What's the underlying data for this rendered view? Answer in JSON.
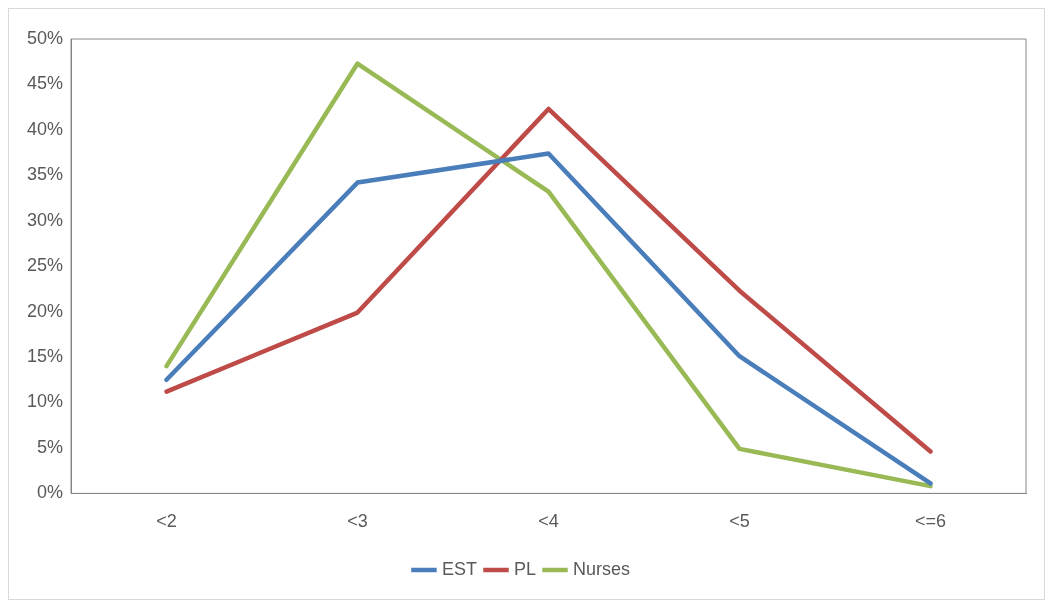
{
  "chart_data": {
    "type": "line",
    "categories": [
      "<2",
      "<3",
      "<4",
      "<5",
      "<=6"
    ],
    "series": [
      {
        "name": "EST",
        "color": "#4a7ebb",
        "values": [
          12.5,
          34.2,
          37.4,
          15.1,
          1.1
        ]
      },
      {
        "name": "PL",
        "color": "#be4b48",
        "values": [
          11.2,
          19.9,
          42.3,
          22.3,
          4.6
        ]
      },
      {
        "name": "Nurses",
        "color": "#98b954",
        "values": [
          14.0,
          47.3,
          33.2,
          4.9,
          0.8
        ]
      }
    ],
    "ylim": [
      0,
      50
    ],
    "yticks": [
      {
        "value": 0,
        "label": "0%"
      },
      {
        "value": 5,
        "label": "5%"
      },
      {
        "value": 10,
        "label": "10%"
      },
      {
        "value": 15,
        "label": "15%"
      },
      {
        "value": 20,
        "label": "20%"
      },
      {
        "value": 25,
        "label": "25%"
      },
      {
        "value": 30,
        "label": "30%"
      },
      {
        "value": 35,
        "label": "35%"
      },
      {
        "value": 40,
        "label": "40%"
      },
      {
        "value": 45,
        "label": "45%"
      },
      {
        "value": 50,
        "label": "50%"
      }
    ],
    "grid": false,
    "legend": "bottom",
    "marker": "none"
  }
}
